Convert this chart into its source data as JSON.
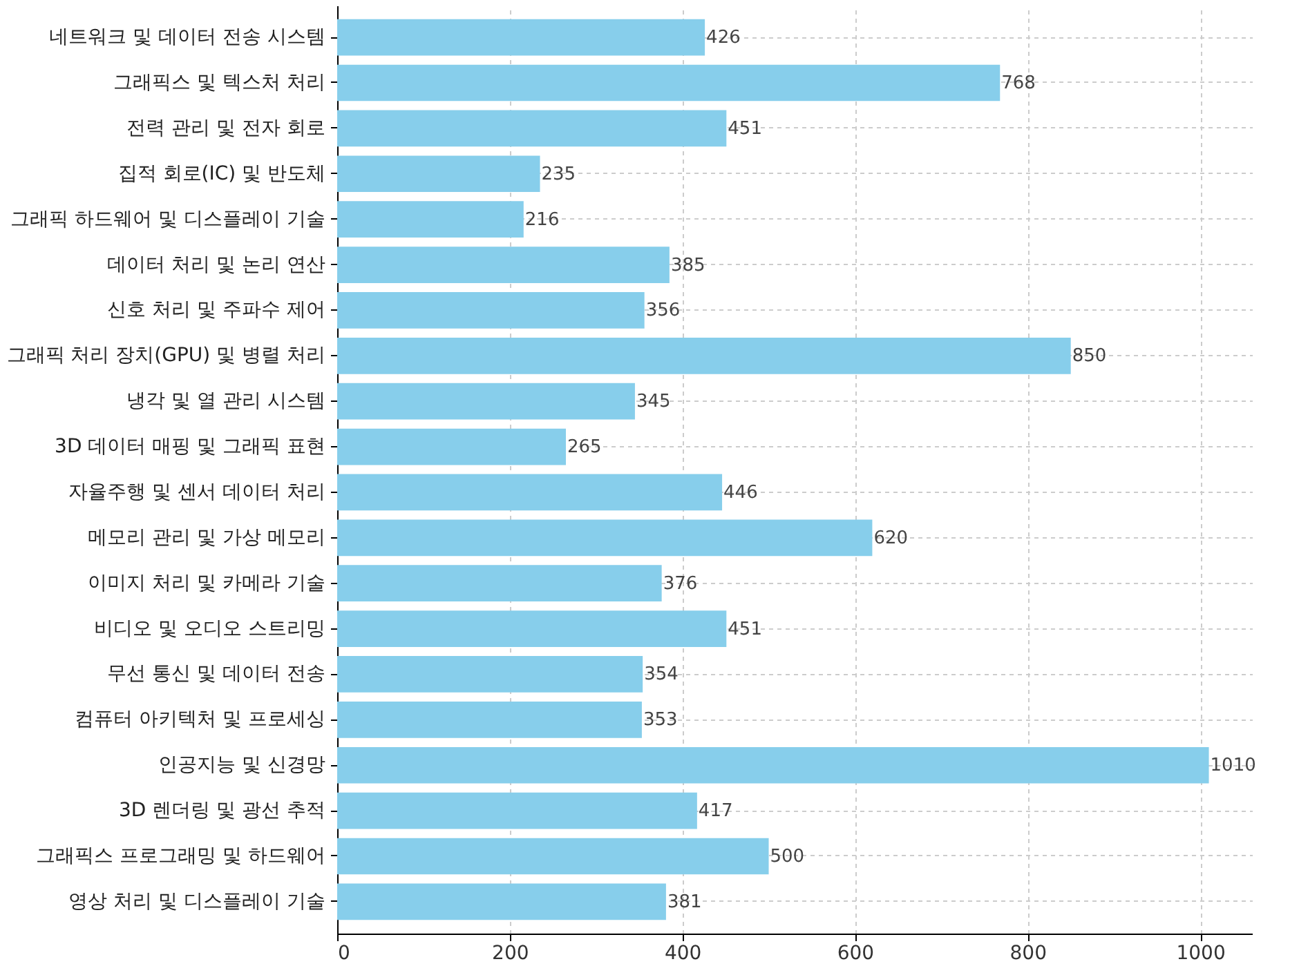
{
  "chart_data": {
    "type": "bar",
    "orientation": "horizontal",
    "categories": [
      "네트워크 및 데이터 전송 시스템",
      "그래픽스 및 텍스처 처리",
      "전력 관리 및 전자 회로",
      "집적 회로(IC) 및 반도체",
      "그래픽 하드웨어 및 디스플레이 기술",
      "데이터 처리 및 논리 연산",
      "신호 처리 및 주파수 제어",
      "그래픽 처리 장치(GPU) 및 병렬 처리",
      "냉각 및 열 관리 시스템",
      "3D 데이터 매핑 및 그래픽 표현",
      "자율주행 및 센서 데이터 처리",
      "메모리 관리 및 가상 메모리",
      "이미지 처리 및 카메라 기술",
      "비디오 및 오디오 스트리밍",
      "무선 통신 및 데이터 전송",
      "컴퓨터 아키텍처 및 프로세싱",
      "인공지능 및 신경망",
      "3D 렌더링 및 광선 추적",
      "그래픽스 프로그래밍 및 하드웨어",
      "영상 처리 및 디스플레이 기술"
    ],
    "values": [
      426,
      768,
      451,
      235,
      216,
      385,
      356,
      850,
      345,
      265,
      446,
      620,
      376,
      451,
      354,
      353,
      1010,
      417,
      500,
      381
    ],
    "color": "#87ceeb",
    "xlim": [
      0,
      1060
    ],
    "xticks": [
      0,
      200,
      400,
      600,
      800,
      1000
    ],
    "grid": true,
    "data_labels": true
  }
}
